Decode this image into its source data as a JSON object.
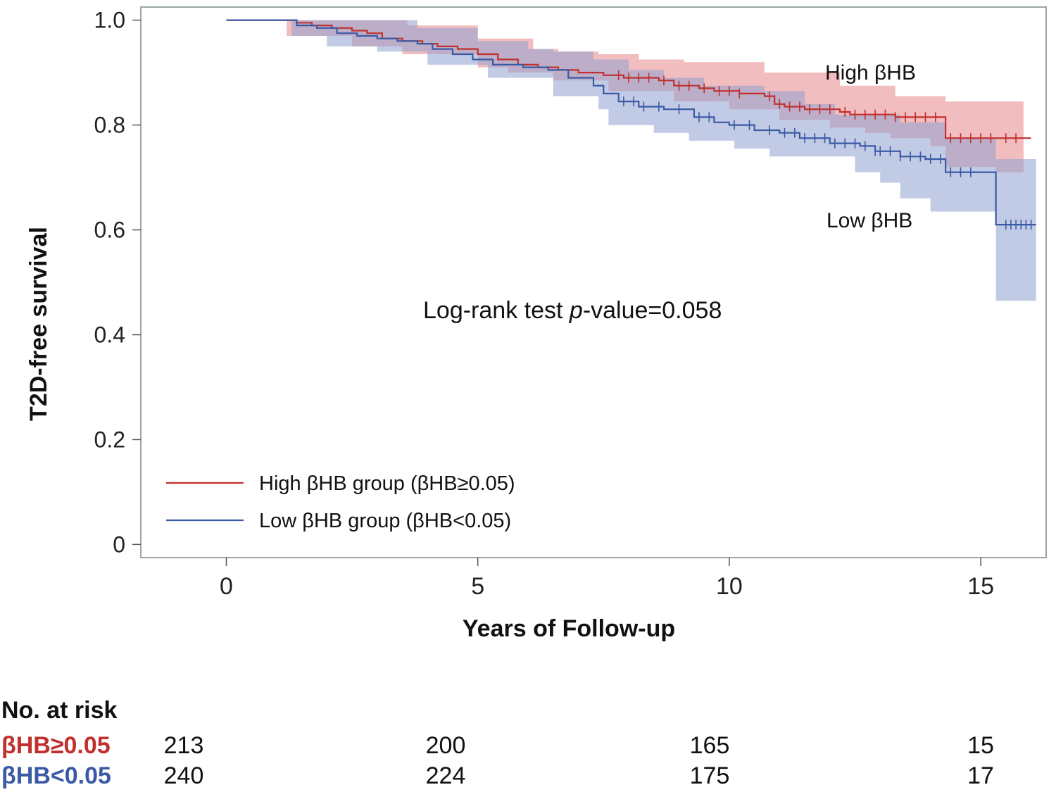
{
  "chart_data": {
    "type": "line",
    "subtype": "kaplan-meier step survival curves with confidence bands and censor marks",
    "title": "",
    "xlabel": "Years of Follow-up",
    "ylabel": "T2D-free survival",
    "xlim": [
      -1.7,
      16.3
    ],
    "ylim": [
      -0.025,
      1.025
    ],
    "x_ticks": [
      0,
      5,
      10,
      15
    ],
    "y_ticks": [
      0,
      0.2,
      0.4,
      0.6,
      0.8,
      1.0
    ],
    "y_tick_labels": [
      "0",
      "0.2",
      "0.4",
      "0.6",
      "0.8",
      "1.0"
    ],
    "annotation": {
      "prefix": "Log-rank test ",
      "italic": "p",
      "suffix": "-value=0.058"
    },
    "legend_position": "bottom-left",
    "series": [
      {
        "name": "High βHB group (βHB≥0.05)",
        "label": "High βHB",
        "color": "#c0302e",
        "band_color": "#e8868b",
        "steps": [
          [
            0,
            1.0
          ],
          [
            1.2,
            1.0
          ],
          [
            1.4,
            0.995
          ],
          [
            1.7,
            0.99
          ],
          [
            2.1,
            0.985
          ],
          [
            2.5,
            0.98
          ],
          [
            2.8,
            0.975
          ],
          [
            3.1,
            0.965
          ],
          [
            3.5,
            0.96
          ],
          [
            3.9,
            0.955
          ],
          [
            4.2,
            0.95
          ],
          [
            4.6,
            0.945
          ],
          [
            5.0,
            0.935
          ],
          [
            5.4,
            0.925
          ],
          [
            5.8,
            0.915
          ],
          [
            6.2,
            0.91
          ],
          [
            6.6,
            0.905
          ],
          [
            7.0,
            0.9
          ],
          [
            7.5,
            0.895
          ],
          [
            7.9,
            0.89
          ],
          [
            8.6,
            0.885
          ],
          [
            8.9,
            0.875
          ],
          [
            9.4,
            0.87
          ],
          [
            9.7,
            0.865
          ],
          [
            10.2,
            0.86
          ],
          [
            10.7,
            0.855
          ],
          [
            10.9,
            0.84
          ],
          [
            11.1,
            0.835
          ],
          [
            11.5,
            0.83
          ],
          [
            12.2,
            0.825
          ],
          [
            12.4,
            0.82
          ],
          [
            13.3,
            0.815
          ],
          [
            14.3,
            0.775
          ],
          [
            16.0,
            0.775
          ]
        ],
        "band_lower": [
          [
            0,
            1.0
          ],
          [
            1.2,
            0.97
          ],
          [
            2.5,
            0.95
          ],
          [
            3.5,
            0.935
          ],
          [
            5.0,
            0.91
          ],
          [
            5.6,
            0.9
          ],
          [
            6.5,
            0.885
          ],
          [
            7.6,
            0.865
          ],
          [
            8.9,
            0.845
          ],
          [
            10.0,
            0.83
          ],
          [
            11.0,
            0.81
          ],
          [
            12.0,
            0.795
          ],
          [
            12.7,
            0.785
          ],
          [
            13.2,
            0.775
          ],
          [
            14.0,
            0.76
          ],
          [
            14.3,
            0.72
          ],
          [
            15.3,
            0.71
          ],
          [
            15.85,
            0.7
          ]
        ],
        "band_upper": [
          [
            0,
            1.0
          ],
          [
            1.2,
            1.0
          ],
          [
            2.5,
            1.0
          ],
          [
            3.6,
            0.99
          ],
          [
            5.0,
            0.965
          ],
          [
            6.1,
            0.945
          ],
          [
            6.6,
            0.94
          ],
          [
            7.4,
            0.935
          ],
          [
            8.2,
            0.925
          ],
          [
            9.1,
            0.92
          ],
          [
            10.7,
            0.9
          ],
          [
            12.2,
            0.875
          ],
          [
            13.3,
            0.855
          ],
          [
            14.3,
            0.845
          ],
          [
            15.85,
            0.84
          ]
        ],
        "censor_times": [
          7.8,
          8.0,
          8.2,
          8.4,
          8.7,
          9.0,
          9.2,
          9.5,
          9.8,
          10.0,
          10.2,
          10.8,
          11.0,
          11.2,
          11.4,
          11.6,
          11.8,
          12.0,
          12.3,
          12.5,
          12.7,
          12.9,
          13.1,
          13.3,
          13.5,
          13.7,
          13.9,
          14.1,
          14.4,
          14.6,
          14.8,
          15.0,
          15.2,
          15.5,
          15.7
        ]
      },
      {
        "name": "Low βHB group (βHB<0.05)",
        "label": "Low βHB",
        "color": "#3a5aa5",
        "band_color": "#8fa1d0",
        "steps": [
          [
            0,
            1.0
          ],
          [
            1.3,
            1.0
          ],
          [
            1.4,
            0.99
          ],
          [
            1.8,
            0.985
          ],
          [
            2.2,
            0.975
          ],
          [
            2.6,
            0.97
          ],
          [
            3.0,
            0.965
          ],
          [
            3.4,
            0.96
          ],
          [
            3.8,
            0.955
          ],
          [
            4.1,
            0.945
          ],
          [
            4.5,
            0.935
          ],
          [
            4.9,
            0.925
          ],
          [
            5.3,
            0.915
          ],
          [
            5.9,
            0.91
          ],
          [
            6.4,
            0.905
          ],
          [
            6.8,
            0.89
          ],
          [
            7.3,
            0.875
          ],
          [
            7.5,
            0.86
          ],
          [
            7.8,
            0.845
          ],
          [
            8.2,
            0.835
          ],
          [
            8.7,
            0.83
          ],
          [
            9.3,
            0.815
          ],
          [
            9.7,
            0.805
          ],
          [
            10.0,
            0.8
          ],
          [
            10.5,
            0.79
          ],
          [
            11.0,
            0.785
          ],
          [
            11.4,
            0.775
          ],
          [
            12.0,
            0.765
          ],
          [
            12.6,
            0.76
          ],
          [
            12.9,
            0.75
          ],
          [
            13.4,
            0.74
          ],
          [
            13.9,
            0.735
          ],
          [
            14.3,
            0.71
          ],
          [
            15.3,
            0.71
          ],
          [
            15.3,
            0.61
          ],
          [
            16.1,
            0.61
          ]
        ],
        "band_lower": [
          [
            0,
            1.0
          ],
          [
            1.3,
            0.97
          ],
          [
            2.0,
            0.95
          ],
          [
            3.0,
            0.94
          ],
          [
            4.0,
            0.915
          ],
          [
            5.2,
            0.89
          ],
          [
            6.5,
            0.855
          ],
          [
            7.4,
            0.83
          ],
          [
            7.6,
            0.8
          ],
          [
            8.5,
            0.785
          ],
          [
            9.2,
            0.77
          ],
          [
            10.1,
            0.755
          ],
          [
            10.8,
            0.74
          ],
          [
            12.5,
            0.71
          ],
          [
            13.0,
            0.69
          ],
          [
            13.4,
            0.66
          ],
          [
            14.0,
            0.635
          ],
          [
            15.3,
            0.635
          ],
          [
            15.3,
            0.465
          ],
          [
            16.1,
            0.465
          ]
        ],
        "band_upper": [
          [
            0,
            1.0
          ],
          [
            1.3,
            1.0
          ],
          [
            2.7,
            1.0
          ],
          [
            3.8,
            0.985
          ],
          [
            5.0,
            0.96
          ],
          [
            6.0,
            0.945
          ],
          [
            6.5,
            0.94
          ],
          [
            7.3,
            0.925
          ],
          [
            8.0,
            0.905
          ],
          [
            8.7,
            0.89
          ],
          [
            9.5,
            0.875
          ],
          [
            10.7,
            0.865
          ],
          [
            11.5,
            0.84
          ],
          [
            12.1,
            0.82
          ],
          [
            13.4,
            0.805
          ],
          [
            14.3,
            0.775
          ],
          [
            15.3,
            0.765
          ],
          [
            15.3,
            0.735
          ],
          [
            16.1,
            0.735
          ]
        ],
        "censor_times": [
          7.9,
          8.1,
          8.3,
          8.6,
          9.0,
          9.4,
          9.6,
          10.1,
          10.4,
          10.8,
          11.1,
          11.3,
          11.5,
          11.7,
          11.9,
          12.1,
          12.3,
          12.5,
          12.7,
          12.9,
          13.0,
          13.2,
          13.4,
          13.6,
          13.8,
          14.0,
          14.2,
          14.4,
          14.6,
          14.8,
          15.5,
          15.6,
          15.7,
          15.8,
          15.9,
          16.0
        ]
      }
    ],
    "risk_table": {
      "title": "No. at risk",
      "times": [
        0,
        5,
        10,
        15
      ],
      "rows": [
        {
          "label": "βHB≥0.05",
          "color": "#c0302e",
          "values": [
            "213",
            "200",
            "165",
            "15"
          ]
        },
        {
          "label": "βHB<0.05",
          "color": "#3a5aa5",
          "values": [
            "240",
            "224",
            "175",
            "17"
          ]
        }
      ]
    }
  }
}
